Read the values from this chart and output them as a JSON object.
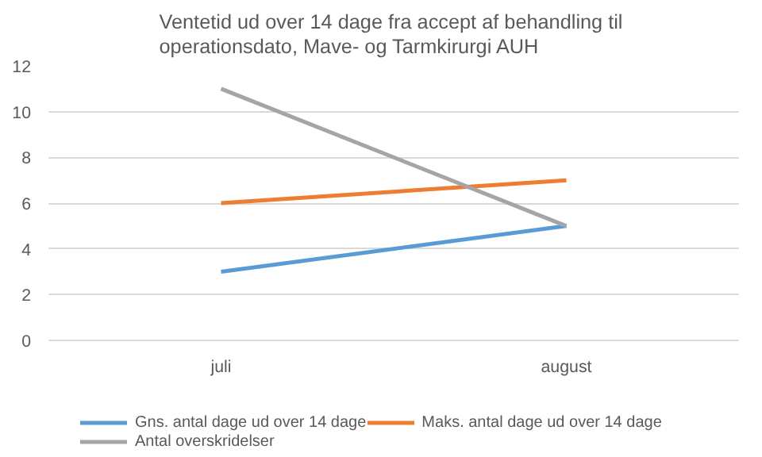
{
  "chart_data": {
    "type": "line",
    "title": "Ventetid ud over 14 dage fra accept af behandling  til\noperationsdato, Mave- og Tarmkirurgi  AUH",
    "categories": [
      "juli",
      "august"
    ],
    "series": [
      {
        "name": "Gns. antal dage ud over 14 dage",
        "color": "#5b9bd5",
        "values": [
          3,
          5
        ]
      },
      {
        "name": "Maks. antal dage ud over 14 dage",
        "color": "#ed7d31",
        "values": [
          6,
          7
        ]
      },
      {
        "name": "Antal overskridelser",
        "color": "#a5a5a5",
        "values": [
          11,
          5
        ]
      }
    ],
    "ylim": [
      0,
      12
    ],
    "yticks": [
      0,
      2,
      4,
      6,
      8,
      10,
      12
    ],
    "grid": "y",
    "legend": "bottom",
    "marker": "none",
    "line_style": "solid"
  }
}
